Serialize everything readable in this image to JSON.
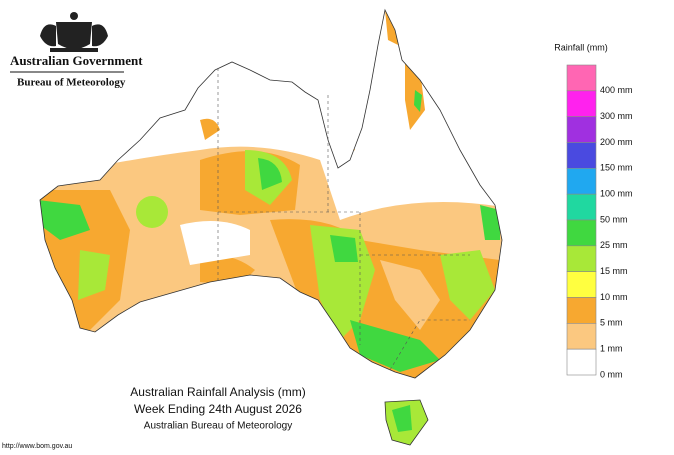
{
  "header": {
    "government": "Australian Government",
    "bureau": "Bureau of Meteorology"
  },
  "legend": {
    "title": "Rainfall (mm)",
    "colors": [
      "#ff66b3",
      "#ff22ee",
      "#a030e0",
      "#4a4ae0",
      "#20a8f0",
      "#20d8a0",
      "#40d840",
      "#a8e838",
      "#ffff40",
      "#f7a830",
      "#fbc880",
      "#ffffff"
    ],
    "labels": [
      "400 mm",
      "300 mm",
      "200 mm",
      "150 mm",
      "100 mm",
      "50 mm",
      "25 mm",
      "15 mm",
      "10 mm",
      "5 mm",
      "1 mm",
      "0 mm"
    ]
  },
  "caption": {
    "title": "Australian Rainfall Analysis (mm)",
    "period": "Week Ending 24th August 2026",
    "source": "Australian Bureau of Meteorology"
  },
  "url": "http://www.bom.gov.au"
}
